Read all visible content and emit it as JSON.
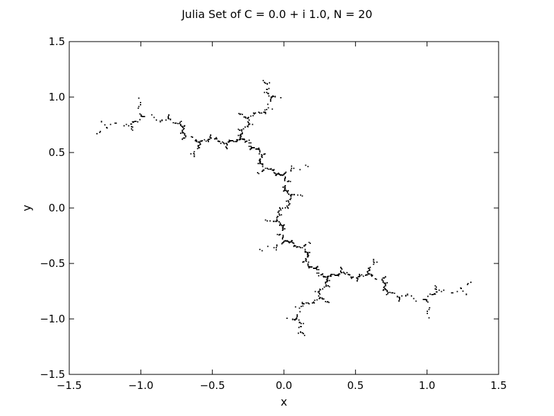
{
  "figure": {
    "title": "Julia Set of C = 0.0 + i 1.0, N = 20"
  },
  "chart_data": {
    "type": "scatter",
    "title": "Julia Set of C = 0.0 + i 1.0, N = 20",
    "xlabel": "x",
    "ylabel": "y",
    "xlim": [
      -1.5,
      1.5
    ],
    "ylim": [
      -1.5,
      1.5
    ],
    "xticks": [
      -1.5,
      -1.0,
      -0.5,
      0.0,
      0.5,
      1.0,
      1.5
    ],
    "yticks": [
      -1.5,
      -1.0,
      -0.5,
      0.0,
      0.5,
      1.0,
      1.5
    ],
    "xtick_labels": [
      "−1.5",
      "−1.0",
      "−0.5",
      "0.0",
      "0.5",
      "1.0",
      "1.5"
    ],
    "ytick_labels": [
      "−1.5",
      "−1.0",
      "−0.5",
      "0.0",
      "0.5",
      "1.0",
      "1.5"
    ],
    "grid": false,
    "series": [
      {
        "c_real": 0.0,
        "c_imag": 1.0,
        "iterations": 20,
        "color": "#000000",
        "description": "filled Julia set (dendrite) points"
      }
    ]
  }
}
